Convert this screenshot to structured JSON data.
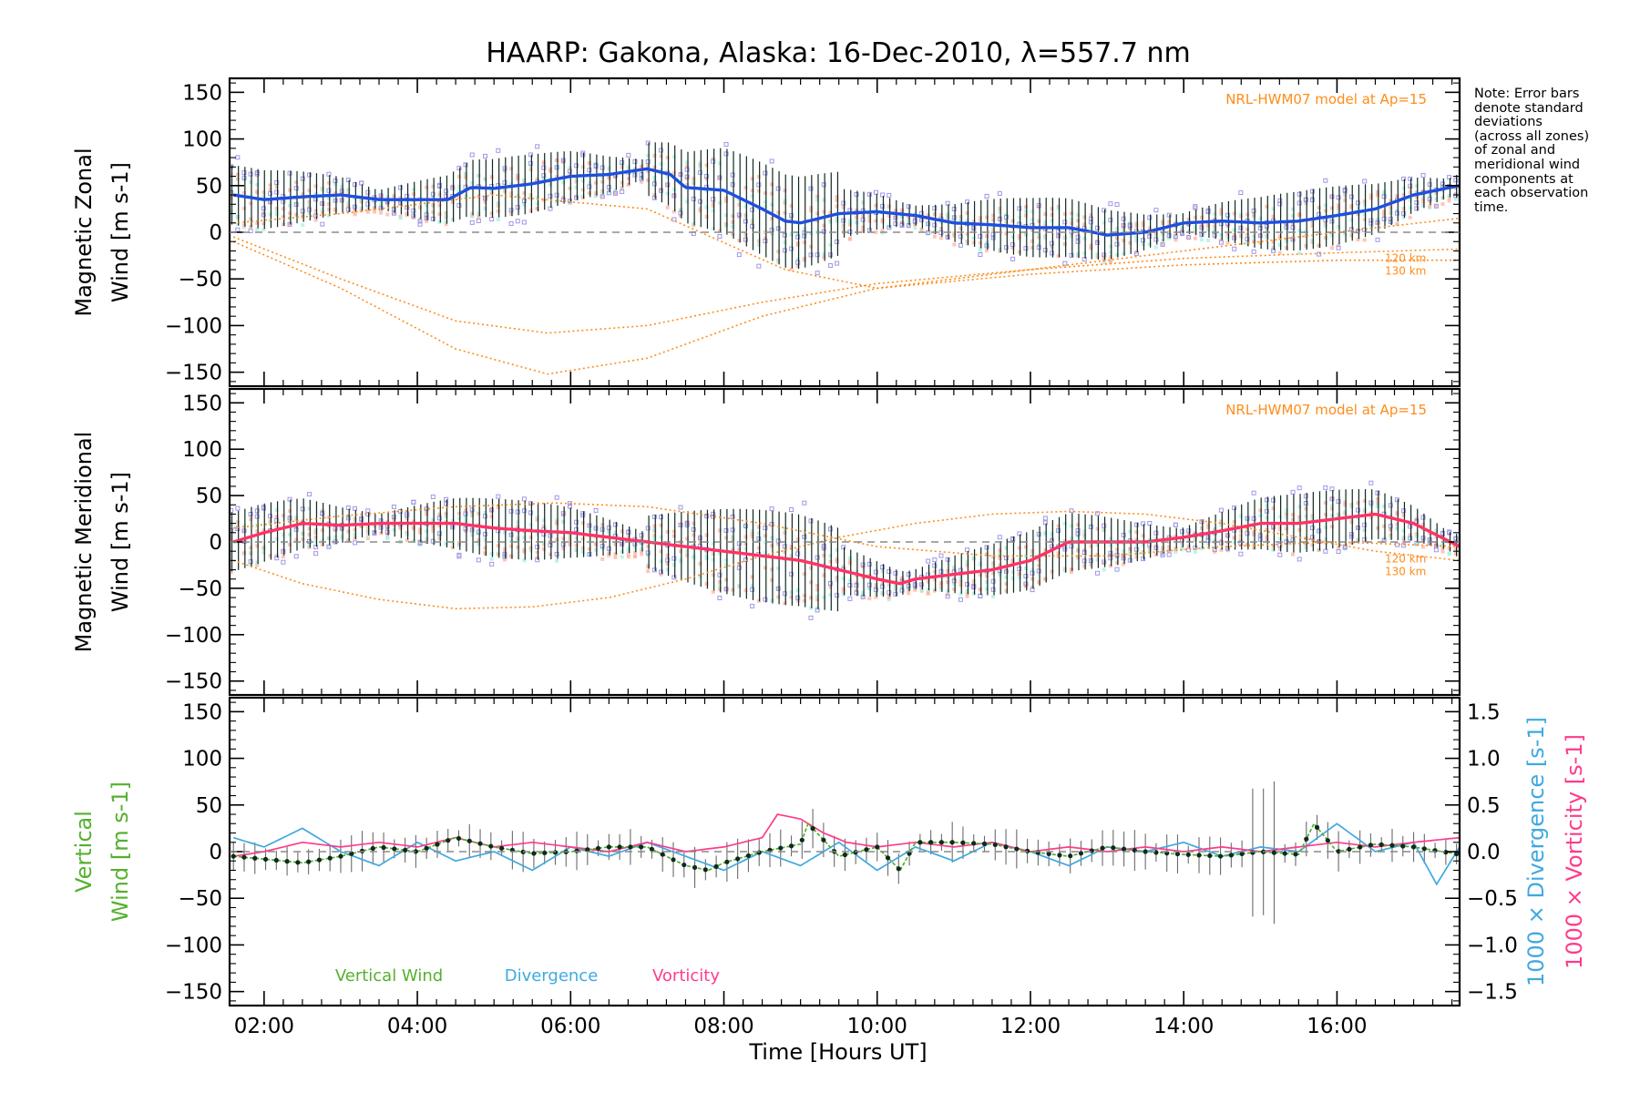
{
  "title": "HAARP: Gakona,  Alaska: 16-Dec-2010, λ=557.7 nm",
  "note": [
    "Note: Error bars",
    "denote standard",
    "deviations",
    "(across all zones)",
    "of zonal and",
    "meridional wind",
    "components at",
    "each observation",
    "time."
  ],
  "x_axis": {
    "label": "Time [Hours UT]",
    "ticks": [
      "02:00",
      "04:00",
      "06:00",
      "08:00",
      "10:00",
      "12:00",
      "14:00",
      "16:00"
    ],
    "tick_hours": [
      2,
      4,
      6,
      8,
      10,
      12,
      14,
      16
    ],
    "range_hours": [
      1.55,
      17.6
    ]
  },
  "colors": {
    "zonal": "#1f4fe0",
    "meridional": "#ff3366",
    "model": "#ff8c1a",
    "vertical": "#55b02e",
    "divergence": "#3fa9e0",
    "vorticity": "#ff3b8a",
    "scatter": "#9f97e6",
    "band_warm": "#ffb3a0",
    "band_cool": "#a8f0e0"
  },
  "chart_data": [
    {
      "type": "line",
      "panel": "zonal",
      "ylabel": [
        "Magnetic Zonal",
        "Wind [m s-1]"
      ],
      "ylim": [
        -165,
        165
      ],
      "yticks": [
        150,
        100,
        50,
        0,
        -50,
        -100,
        -150
      ],
      "ytick_labels": [
        "150",
        "100",
        "50",
        "0",
        "−50",
        "−100",
        "−150"
      ],
      "model_label": "NRL-HWM07 model at Ap=15",
      "model_level_labels": [
        "120 km",
        "130 km"
      ],
      "series": [
        {
          "name": "",
          "x": [
            1.6,
            2.0,
            2.5,
            3.0,
            3.5,
            4.0,
            4.4,
            4.7,
            5.0,
            5.5,
            6.0,
            6.5,
            7.0,
            7.3,
            7.5,
            8.0,
            8.5,
            8.8,
            9.0,
            9.5,
            10.0,
            10.5,
            11.0,
            11.5,
            12.0,
            12.5,
            13.0,
            13.5,
            14.0,
            14.5,
            15.0,
            15.5,
            16.0,
            16.5,
            17.0,
            17.6
          ],
          "y": [
            40,
            35,
            38,
            40,
            35,
            35,
            35,
            48,
            47,
            52,
            60,
            62,
            68,
            62,
            48,
            45,
            25,
            12,
            10,
            20,
            22,
            18,
            10,
            8,
            5,
            5,
            -3,
            0,
            10,
            12,
            10,
            12,
            18,
            25,
            40,
            50
          ]
        },
        {
          "name": "",
          "x": [
            1.6,
            3.0,
            4.5,
            5.7,
            7.0,
            8.5,
            10.0,
            12.0,
            14.0,
            16.0,
            17.6
          ],
          "y": [
            -10,
            -60,
            -125,
            -152,
            -135,
            -90,
            -60,
            -45,
            -35,
            -30,
            -30
          ]
        },
        {
          "name": "",
          "x": [
            1.6,
            3.0,
            4.5,
            5.7,
            7.0,
            8.5,
            10.0,
            12.0,
            14.0,
            16.0,
            17.6
          ],
          "y": [
            -5,
            -50,
            -95,
            -108,
            -100,
            -75,
            -55,
            -40,
            -28,
            -22,
            -18
          ]
        },
        {
          "name": "",
          "x": [
            1.6,
            3.0,
            5.0,
            7.0,
            8.8,
            10.0,
            12.0,
            14.0,
            16.0,
            17.6
          ],
          "y": [
            10,
            20,
            40,
            25,
            -40,
            -60,
            -40,
            -20,
            0,
            15
          ]
        }
      ]
    },
    {
      "type": "line",
      "panel": "meridional",
      "ylabel": [
        "Magnetic Meridional",
        "Wind [m s-1]"
      ],
      "ylim": [
        -165,
        165
      ],
      "yticks": [
        150,
        100,
        50,
        0,
        -50,
        -100,
        -150
      ],
      "ytick_labels": [
        "150",
        "100",
        "50",
        "0",
        "−50",
        "−100",
        "−150"
      ],
      "model_label": "NRL-HWM07 model at Ap=15",
      "model_level_labels": [
        "120 km",
        "130 km"
      ],
      "series": [
        {
          "name": "",
          "x": [
            1.6,
            2.0,
            2.5,
            3.0,
            3.5,
            4.0,
            4.5,
            5.0,
            5.5,
            6.0,
            6.5,
            7.0,
            7.5,
            8.0,
            8.5,
            9.0,
            9.5,
            10.0,
            10.3,
            10.5,
            11.0,
            11.5,
            12.0,
            12.5,
            13.0,
            13.5,
            14.0,
            14.5,
            15.0,
            15.5,
            16.0,
            16.5,
            17.0,
            17.6
          ],
          "y": [
            0,
            10,
            20,
            18,
            20,
            20,
            20,
            15,
            12,
            10,
            5,
            0,
            -5,
            -10,
            -15,
            -20,
            -30,
            -40,
            -45,
            -40,
            -35,
            -30,
            -20,
            0,
            0,
            0,
            5,
            12,
            20,
            20,
            25,
            30,
            20,
            -5
          ]
        },
        {
          "name": "",
          "x": [
            1.6,
            2.5,
            3.5,
            4.5,
            5.5,
            6.5,
            7.5,
            8.5,
            9.5,
            10.5,
            11.5,
            12.5,
            13.5,
            14.5,
            15.5,
            16.5,
            17.6
          ],
          "y": [
            -20,
            -45,
            -62,
            -72,
            -70,
            -60,
            -40,
            -15,
            5,
            20,
            30,
            33,
            30,
            20,
            5,
            -10,
            -20
          ]
        },
        {
          "name": "",
          "x": [
            1.6,
            3.0,
            4.5,
            5.8,
            7.0,
            8.5,
            10.0,
            11.5,
            13.0,
            14.5,
            16.0,
            17.6
          ],
          "y": [
            15,
            28,
            38,
            42,
            38,
            20,
            -5,
            -15,
            -15,
            -5,
            0,
            -5
          ]
        }
      ]
    },
    {
      "type": "line",
      "panel": "vertical",
      "ylabel": [
        "Vertical",
        "Wind [m s-1]"
      ],
      "ylim": [
        -165,
        165
      ],
      "yticks": [
        150,
        100,
        50,
        0,
        -50,
        -100,
        -150
      ],
      "ytick_labels": [
        "150",
        "100",
        "50",
        "0",
        "−50",
        "−100",
        "−150"
      ],
      "y2label": [
        "1000 × Divergence [s-1]",
        "1000 × Vorticity [s-1]"
      ],
      "y2lim": [
        -1.65,
        1.65
      ],
      "y2ticks": [
        1.5,
        1.0,
        0.5,
        0.0,
        -0.5,
        -1.0,
        -1.5
      ],
      "y2tick_labels": [
        "1.5",
        "1.0",
        "0.5",
        "0.0",
        "−0.5",
        "−1.0",
        "−1.5"
      ],
      "legend": [
        "Vertical Wind",
        "Divergence",
        "Vorticity"
      ],
      "series": [
        {
          "name": "Vertical Wind",
          "x": [
            1.6,
            2.0,
            2.5,
            3.0,
            3.5,
            4.0,
            4.5,
            5.0,
            5.5,
            6.0,
            6.5,
            7.0,
            7.5,
            7.8,
            8.0,
            8.5,
            9.0,
            9.1,
            9.5,
            10.0,
            10.3,
            10.5,
            11.0,
            11.5,
            12.0,
            12.5,
            13.0,
            13.5,
            14.0,
            14.5,
            15.0,
            15.5,
            15.7,
            16.0,
            16.5,
            17.0,
            17.6
          ],
          "y": [
            -5,
            -8,
            -12,
            -5,
            5,
            0,
            15,
            5,
            -2,
            0,
            5,
            5,
            -15,
            -20,
            -12,
            0,
            8,
            30,
            -5,
            5,
            -20,
            10,
            10,
            8,
            0,
            -5,
            5,
            0,
            -3,
            -5,
            0,
            -3,
            30,
            0,
            8,
            5,
            -3
          ]
        },
        {
          "name": "Divergence",
          "x": [
            1.6,
            2.0,
            2.5,
            3.0,
            3.5,
            4.0,
            4.5,
            5.0,
            5.5,
            6.0,
            6.5,
            7.0,
            7.5,
            8.0,
            8.5,
            9.0,
            9.5,
            10.0,
            10.5,
            11.0,
            11.5,
            12.0,
            12.5,
            13.0,
            13.5,
            14.0,
            14.5,
            15.0,
            15.5,
            16.0,
            16.5,
            17.0,
            17.3,
            17.6
          ],
          "y": [
            0.15,
            0.05,
            0.25,
            0.0,
            -0.15,
            0.1,
            -0.1,
            0.0,
            -0.2,
            0.05,
            -0.05,
            0.1,
            -0.05,
            -0.2,
            0.0,
            -0.15,
            0.1,
            -0.2,
            0.05,
            -0.1,
            0.1,
            0.0,
            -0.15,
            0.05,
            0.0,
            0.1,
            -0.05,
            0.05,
            0.0,
            0.3,
            0.0,
            0.1,
            -0.35,
            0.05
          ]
        },
        {
          "name": "Vorticity",
          "x": [
            1.6,
            2.0,
            2.5,
            3.0,
            3.5,
            4.0,
            4.5,
            5.0,
            5.5,
            6.0,
            6.5,
            7.0,
            7.5,
            8.0,
            8.5,
            8.7,
            9.0,
            9.3,
            9.6,
            10.0,
            10.5,
            11.0,
            11.5,
            12.0,
            12.5,
            13.0,
            13.5,
            14.0,
            14.5,
            15.0,
            15.5,
            16.0,
            16.5,
            17.0,
            17.6
          ],
          "y": [
            -0.05,
            0.0,
            0.1,
            0.05,
            0.1,
            0.05,
            0.15,
            0.05,
            0.1,
            0.05,
            0.0,
            0.1,
            0.0,
            0.05,
            0.15,
            0.4,
            0.35,
            0.2,
            0.1,
            0.05,
            0.1,
            0.05,
            0.1,
            0.0,
            0.05,
            0.0,
            0.05,
            0.0,
            0.05,
            0.0,
            0.05,
            0.1,
            0.05,
            0.1,
            0.15
          ]
        }
      ]
    }
  ]
}
